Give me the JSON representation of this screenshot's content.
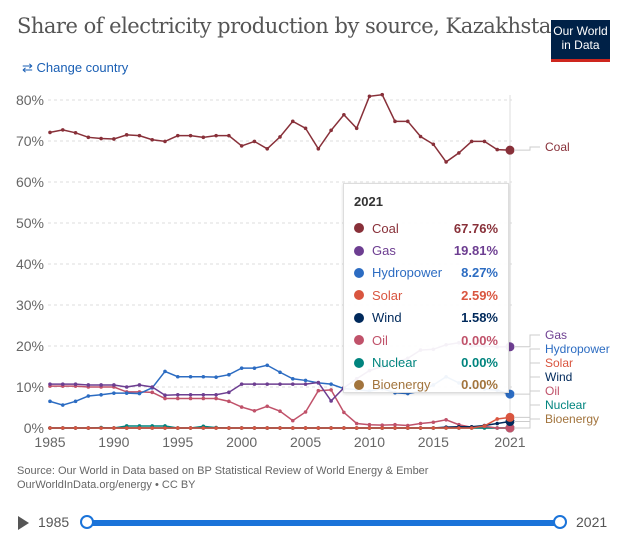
{
  "header": {
    "title": "Share of electricity production by source, Kazakhstan",
    "logo": "Our World in Data",
    "change_country": "Change country",
    "change_icon": "swap-arrows-icon"
  },
  "chart_data": {
    "type": "line",
    "title": "Share of electricity production by source, Kazakhstan",
    "xlabel": "",
    "ylabel": "",
    "ylim": [
      0,
      80
    ],
    "yticks": [
      "0%",
      "10%",
      "20%",
      "30%",
      "40%",
      "50%",
      "60%",
      "70%",
      "80%"
    ],
    "xticks": [
      "1985",
      "1990",
      "1995",
      "2000",
      "2005",
      "2010",
      "2015",
      "2021"
    ],
    "grid": true,
    "legend": "right-end-labels",
    "x": [
      1985,
      1986,
      1987,
      1988,
      1989,
      1990,
      1991,
      1992,
      1993,
      1994,
      1995,
      1996,
      1997,
      1998,
      1999,
      2000,
      2001,
      2002,
      2003,
      2004,
      2005,
      2006,
      2007,
      2008,
      2009,
      2010,
      2011,
      2012,
      2013,
      2014,
      2015,
      2016,
      2017,
      2018,
      2019,
      2020,
      2021
    ],
    "series": [
      {
        "name": "Coal",
        "color": "#883039",
        "values": [
          72.1,
          72.7,
          72.0,
          70.9,
          70.6,
          70.5,
          71.5,
          71.3,
          70.3,
          69.9,
          71.3,
          71.3,
          70.9,
          71.3,
          71.3,
          68.8,
          69.9,
          68.1,
          71.0,
          74.8,
          73.1,
          68.1,
          72.6,
          76.4,
          73.1,
          80.9,
          81.3,
          74.8,
          74.8,
          71.1,
          69.2,
          64.9,
          67.1,
          69.9,
          69.9,
          67.9,
          67.76
        ]
      },
      {
        "name": "Gas",
        "color": "#6d3e91",
        "values": [
          10.7,
          10.7,
          10.7,
          10.5,
          10.5,
          10.5,
          10.0,
          10.5,
          10.0,
          8.0,
          8.1,
          8.1,
          8.1,
          8.1,
          8.7,
          10.7,
          10.7,
          10.7,
          10.7,
          10.7,
          10.7,
          11.1,
          6.6,
          9.8,
          12.0,
          14.0,
          15.0,
          16.0,
          17.0,
          19.0,
          19.2,
          20.3,
          20.8,
          20.0,
          20.0,
          19.8,
          19.81
        ]
      },
      {
        "name": "Hydropower",
        "color": "#2c6cc2",
        "values": [
          6.5,
          5.6,
          6.5,
          7.8,
          8.1,
          8.5,
          8.5,
          8.4,
          9.8,
          13.8,
          12.5,
          12.5,
          12.5,
          12.4,
          13.0,
          14.6,
          14.6,
          15.3,
          13.6,
          12.0,
          11.6,
          11.0,
          10.7,
          9.6,
          9.4,
          9.0,
          9.6,
          8.6,
          8.4,
          9.0,
          10.5,
          12.5,
          11.0,
          10.0,
          9.5,
          9.2,
          8.27
        ]
      },
      {
        "name": "Solar",
        "color": "#d9553f",
        "values": [
          0,
          0,
          0,
          0,
          0,
          0,
          0,
          0,
          0,
          0,
          0,
          0,
          0,
          0,
          0,
          0,
          0,
          0,
          0,
          0,
          0,
          0,
          0,
          0,
          0,
          0,
          0,
          0,
          0,
          0,
          0,
          0,
          0,
          0,
          0.5,
          2.2,
          2.59
        ]
      },
      {
        "name": "Wind",
        "color": "#00295b",
        "values": [
          0,
          0,
          0,
          0,
          0,
          0,
          0,
          0,
          0,
          0,
          0,
          0,
          0,
          0,
          0,
          0,
          0,
          0,
          0,
          0,
          0,
          0,
          0,
          0,
          0,
          0,
          0,
          0,
          0,
          0,
          0,
          0.2,
          0.3,
          0.3,
          0.6,
          1.1,
          1.58
        ]
      },
      {
        "name": "Oil",
        "color": "#c0526a",
        "values": [
          10.2,
          10.2,
          10.2,
          10.0,
          10.0,
          10.0,
          8.8,
          8.8,
          8.7,
          7.2,
          7.2,
          7.2,
          7.2,
          7.2,
          6.5,
          5.1,
          4.2,
          5.3,
          4.1,
          1.8,
          3.9,
          9.1,
          9.3,
          3.8,
          1.1,
          0.8,
          0.7,
          0.8,
          0.6,
          1.1,
          1.4,
          2.0,
          0.8,
          0.2,
          0.4,
          0,
          0
        ]
      },
      {
        "name": "Nuclear",
        "color": "#00847e",
        "values": [
          0,
          0,
          0,
          0,
          0.1,
          0,
          0.5,
          0.5,
          0.5,
          0.5,
          0,
          0,
          0.4,
          0.1,
          0,
          0,
          0,
          0,
          0,
          0,
          0,
          0,
          0,
          0,
          0,
          0,
          0,
          0,
          0,
          0,
          0,
          0,
          0,
          0,
          0,
          0,
          0
        ]
      },
      {
        "name": "Bioenergy",
        "color": "#a2743d",
        "values": [
          0,
          0,
          0,
          0,
          0,
          0,
          0,
          0,
          0,
          0,
          0,
          0,
          0,
          0,
          0,
          0,
          0,
          0,
          0,
          0,
          0,
          0,
          0,
          0,
          0,
          0,
          0,
          0,
          0,
          0,
          0,
          0,
          0,
          0,
          0,
          0,
          0
        ]
      }
    ]
  },
  "tooltip": {
    "year": "2021",
    "rows": [
      {
        "label": "Coal",
        "value": "67.76%"
      },
      {
        "label": "Gas",
        "value": "19.81%"
      },
      {
        "label": "Hydropower",
        "value": "8.27%"
      },
      {
        "label": "Solar",
        "value": "2.59%"
      },
      {
        "label": "Wind",
        "value": "1.58%"
      },
      {
        "label": "Oil",
        "value": "0.00%"
      },
      {
        "label": "Nuclear",
        "value": "0.00%"
      },
      {
        "label": "Bioenergy",
        "value": "0.00%"
      }
    ]
  },
  "footer": {
    "source": "Source: Our World in Data based on BP Statistical Review of World Energy & Ember",
    "link": "OurWorldInData.org/energy • CC BY"
  },
  "timeline": {
    "start": "1985",
    "end": "2021"
  }
}
